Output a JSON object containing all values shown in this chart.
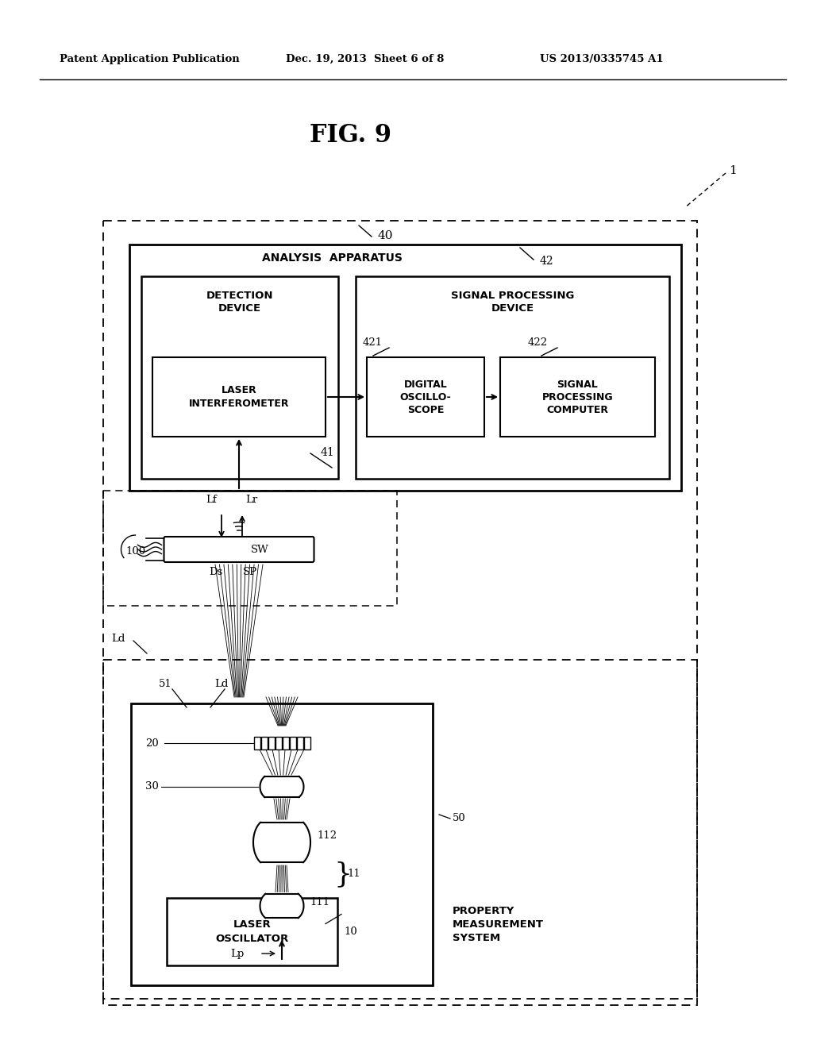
{
  "bg_color": "#ffffff",
  "header_left": "Patent Application Publication",
  "header_mid": "Dec. 19, 2013  Sheet 6 of 8",
  "header_right": "US 2013/0335745 A1",
  "fig_label": "FIG. 9",
  "outer_box_label": "40",
  "analysis_apparatus_label": "ANALYSIS  APPARATUS",
  "analysis_apparatus_ref": "42",
  "detection_device_label": "DETECTION\nDEVICE",
  "detection_device_ref": "41",
  "laser_interferometer_label": "LASER\nINTERFEROMETER",
  "signal_processing_device_label": "SIGNAL PROCESSING\nDEVICE",
  "digital_oscilloscope_label": "DIGITAL\nOSCILLO-\nSCOPE",
  "digital_oscilloscope_ref": "421",
  "signal_processing_computer_label": "SIGNAL\nPROCESSING\nCOMPUTER",
  "signal_processing_computer_ref": "422",
  "laser_oscillator_label": "LASER\nOSCILLATOR",
  "laser_oscillator_ref": "10",
  "property_measurement_label": "PROPERTY\nMEASUREMENT\nSYSTEM",
  "property_measurement_ref": "50",
  "ref_1": "1",
  "ref_100": "100",
  "ref_Ds": "Ds",
  "ref_SP": "SP",
  "ref_SW": "SW",
  "ref_Lf": "Lf",
  "ref_Lr": "Lr",
  "ref_Ld_left": "Ld",
  "ref_Ld_right": "Ld",
  "ref_Lp": "Lp",
  "ref_51": "51",
  "ref_20": "20",
  "ref_30": "30",
  "ref_112": "112",
  "ref_111": "111",
  "ref_11": "11"
}
